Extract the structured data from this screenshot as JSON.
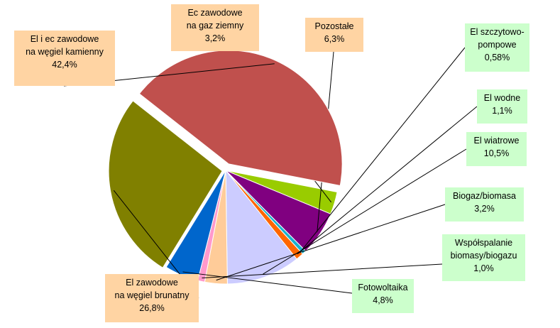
{
  "chart_data": {
    "type": "pie",
    "unit": "%",
    "legend": "none",
    "slices": [
      {
        "lines": [
          "Ec zawodowe",
          "na gaz ziemny"
        ],
        "display": "3,2%",
        "value": 3.2,
        "color": "#99cc00"
      },
      {
        "lines": [
          "Pozostałe"
        ],
        "display": "6,3%",
        "value": 6.3,
        "color": "#800080"
      },
      {
        "lines": [
          "El szczytowo-",
          "pompowe"
        ],
        "display": "0,58%",
        "value": 0.58,
        "color": "#1ab2cc"
      },
      {
        "lines": [
          "El wodne"
        ],
        "display": "1,1%",
        "value": 1.1,
        "color": "#ff6600"
      },
      {
        "lines": [
          "El wiatrowe"
        ],
        "display": "10,5%",
        "value": 10.5,
        "color": "#ccccff"
      },
      {
        "lines": [
          "Biogaz/biomasa"
        ],
        "display": "3,2%",
        "value": 3.2,
        "color": "#ffcc99"
      },
      {
        "lines": [
          "Współspalanie",
          "biomasy/biogazu"
        ],
        "display": "1,0%",
        "value": 1.0,
        "color": "#ff99cc"
      },
      {
        "lines": [
          "Fotowoltaika"
        ],
        "display": "4,8%",
        "value": 4.8,
        "color": "#0066cc"
      },
      {
        "lines": [
          "El zawodowe",
          "na węgiel brunatny"
        ],
        "display": "26,8%",
        "value": 26.8,
        "color": "#808000"
      },
      {
        "lines": [
          "El i ec zawodowe",
          "na węgiel kamienny"
        ],
        "display": "42,4%",
        "value": 42.4,
        "color": "#c0504d"
      }
    ]
  }
}
